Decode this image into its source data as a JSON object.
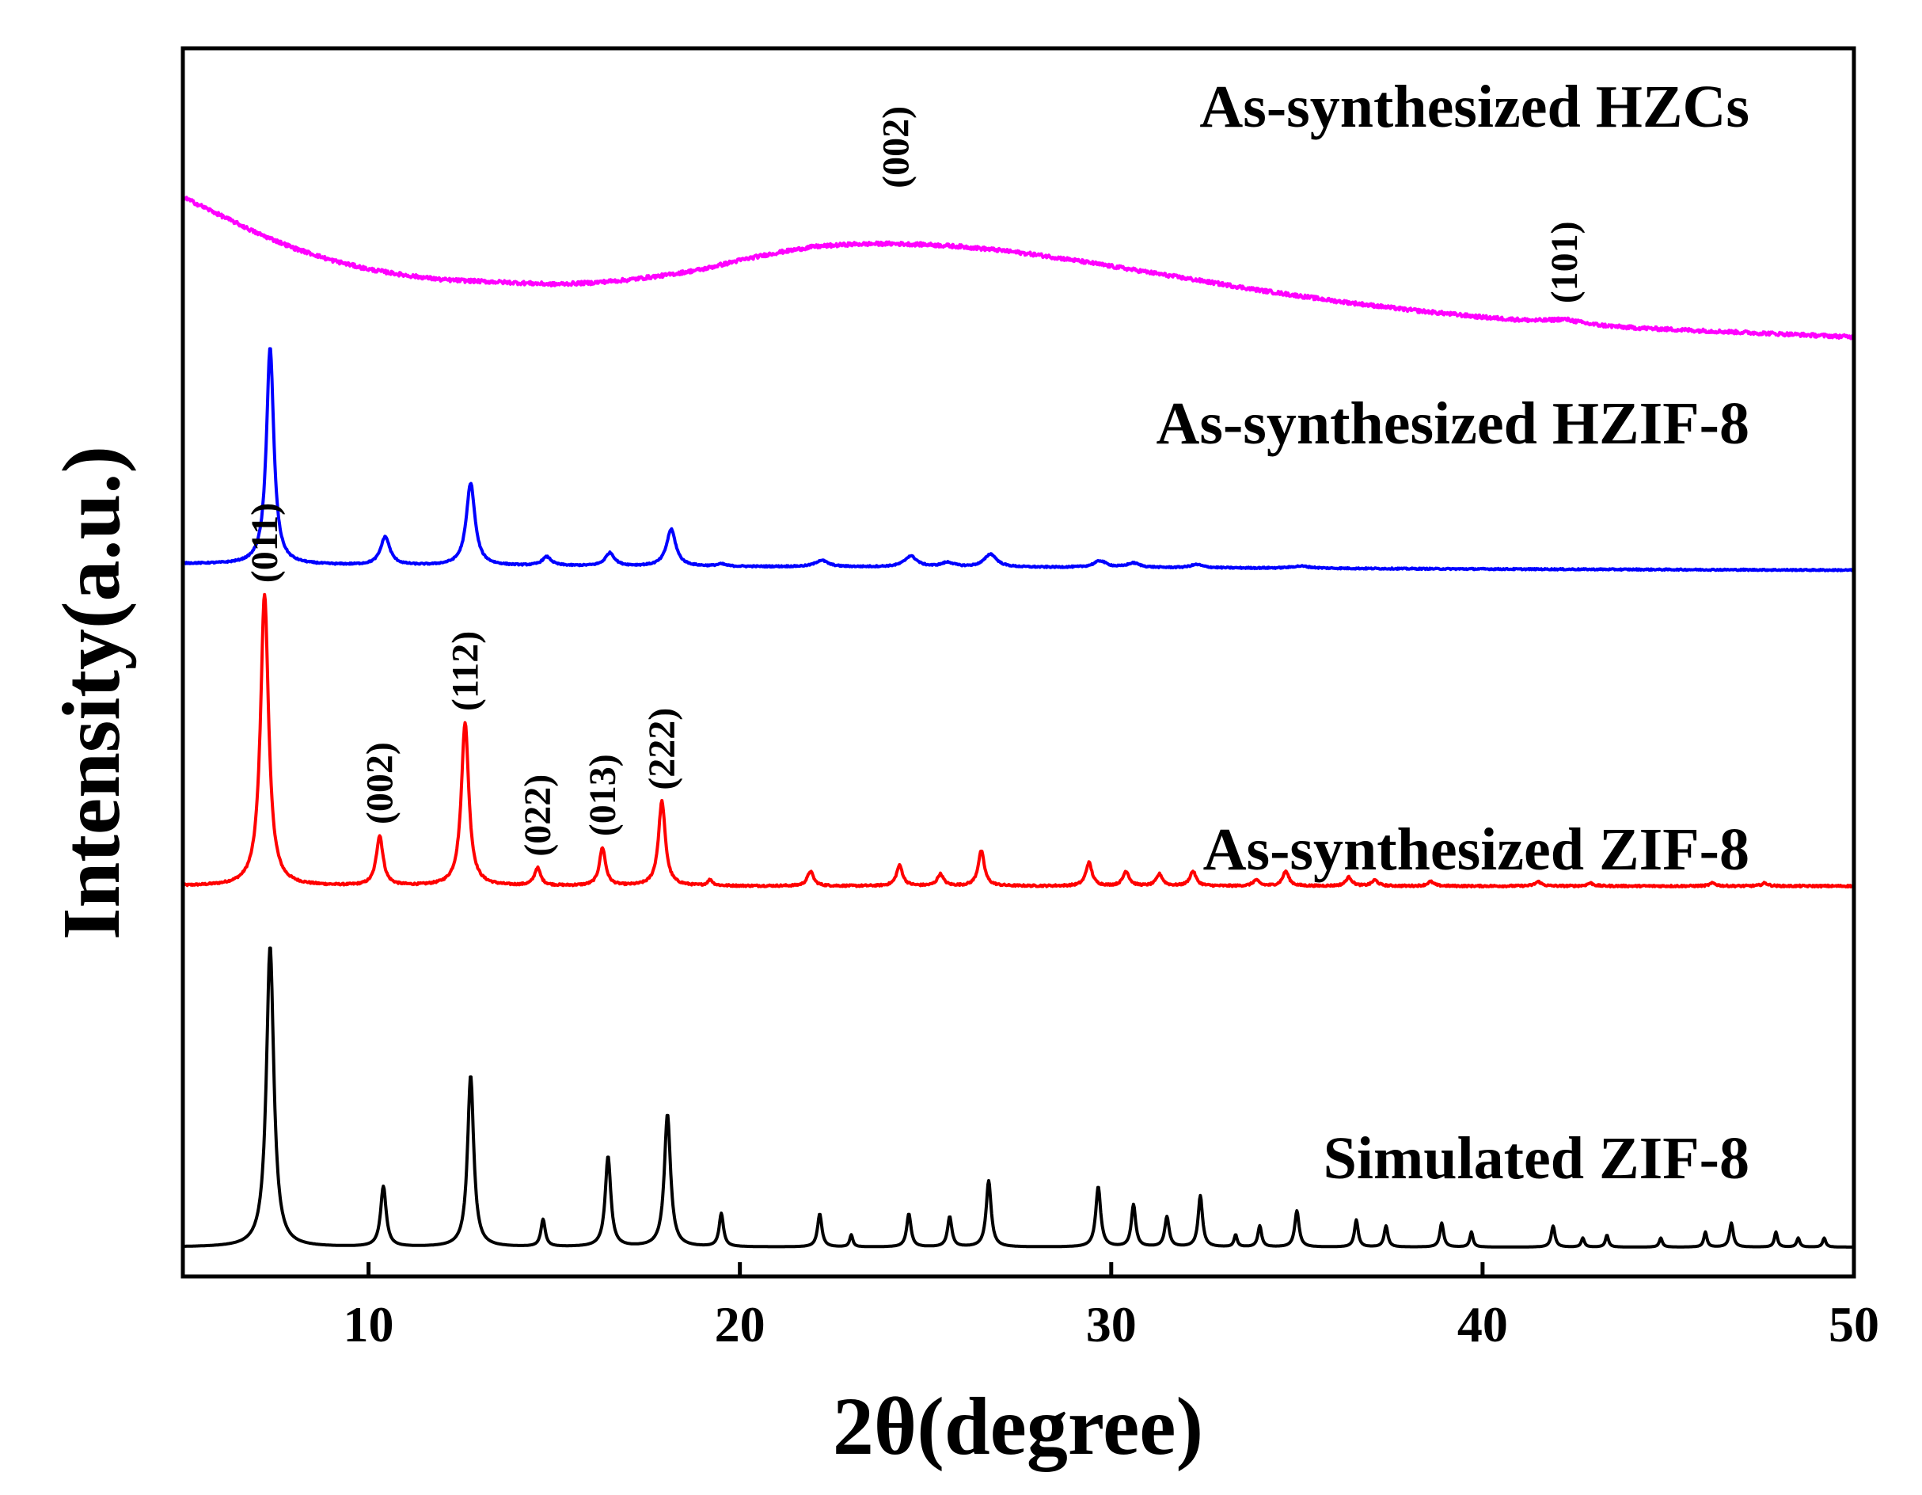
{
  "chart_data": {
    "type": "line",
    "title": "",
    "xlabel": "2θ(degree)",
    "ylabel": "Intensity(a.u.)",
    "xlim": [
      5,
      50
    ],
    "xticks": [
      10,
      20,
      30,
      40,
      50
    ],
    "xtick_labels": [
      "10",
      "20",
      "30",
      "40",
      "50"
    ],
    "yticks": [],
    "grid": false,
    "series": [
      {
        "name": "Simulated ZIF-8",
        "color": "#000000",
        "offset": 0,
        "scale": 1.0,
        "background": [
          [
            5,
            0
          ],
          [
            50,
            0
          ]
        ],
        "peaks": [
          [
            7.35,
            100,
            0.12
          ],
          [
            10.4,
            20,
            0.09
          ],
          [
            12.75,
            57,
            0.1
          ],
          [
            14.7,
            9,
            0.07
          ],
          [
            16.45,
            30,
            0.09
          ],
          [
            18.05,
            44,
            0.1
          ],
          [
            19.5,
            11,
            0.07
          ],
          [
            22.15,
            11,
            0.07
          ],
          [
            23.0,
            4,
            0.05
          ],
          [
            24.55,
            11,
            0.07
          ],
          [
            25.65,
            10,
            0.07
          ],
          [
            26.7,
            22,
            0.08
          ],
          [
            29.65,
            20,
            0.08
          ],
          [
            30.6,
            14,
            0.07
          ],
          [
            31.5,
            10,
            0.07
          ],
          [
            32.4,
            17,
            0.07
          ],
          [
            33.35,
            4,
            0.05
          ],
          [
            34.0,
            7,
            0.06
          ],
          [
            35.0,
            12,
            0.07
          ],
          [
            36.6,
            9,
            0.06
          ],
          [
            37.4,
            7,
            0.06
          ],
          [
            38.9,
            8,
            0.06
          ],
          [
            39.7,
            5,
            0.05
          ],
          [
            41.9,
            7,
            0.06
          ],
          [
            42.7,
            3,
            0.05
          ],
          [
            43.35,
            4,
            0.05
          ],
          [
            44.8,
            3,
            0.05
          ],
          [
            46.0,
            5,
            0.05
          ],
          [
            46.7,
            8,
            0.06
          ],
          [
            47.9,
            5,
            0.05
          ],
          [
            48.5,
            3,
            0.05
          ],
          [
            49.2,
            3,
            0.05
          ]
        ]
      },
      {
        "name": "As-synthesized ZIF-8",
        "color": "#ff0000",
        "offset": 120,
        "scale": 0.97,
        "noise": 0.6,
        "background": [
          [
            5,
            0
          ],
          [
            50,
            0
          ]
        ],
        "peaks": [
          [
            7.2,
            100,
            0.13
          ],
          [
            10.3,
            17,
            0.11
          ],
          [
            12.6,
            56,
            0.12
          ],
          [
            14.55,
            6,
            0.1
          ],
          [
            16.3,
            13,
            0.1
          ],
          [
            17.9,
            29,
            0.11
          ],
          [
            19.2,
            2,
            0.08
          ],
          [
            21.9,
            5,
            0.1
          ],
          [
            24.3,
            7,
            0.1
          ],
          [
            25.4,
            4,
            0.1
          ],
          [
            26.5,
            12,
            0.1
          ],
          [
            29.4,
            8,
            0.1
          ],
          [
            30.4,
            5,
            0.1
          ],
          [
            31.3,
            4,
            0.1
          ],
          [
            32.2,
            5,
            0.1
          ],
          [
            33.9,
            2,
            0.1
          ],
          [
            34.7,
            5,
            0.1
          ],
          [
            36.4,
            3,
            0.1
          ],
          [
            37.1,
            2,
            0.1
          ],
          [
            38.6,
            1.5,
            0.1
          ],
          [
            41.5,
            1.5,
            0.1
          ],
          [
            42.9,
            1,
            0.1
          ],
          [
            46.2,
            1,
            0.1
          ],
          [
            47.6,
            1,
            0.1
          ]
        ]
      },
      {
        "name": "As-synthesized HZIF-8",
        "color": "#0000ff",
        "offset": 225,
        "scale": 0.72,
        "noise": 0.6,
        "background": [
          [
            5,
            3
          ],
          [
            10,
            2.2
          ],
          [
            20,
            1.6
          ],
          [
            30,
            1.2
          ],
          [
            40,
            0.5
          ],
          [
            50,
            0
          ]
        ],
        "peaks": [
          [
            7.35,
            100,
            0.12
          ],
          [
            10.45,
            13,
            0.15
          ],
          [
            12.75,
            38,
            0.14
          ],
          [
            14.8,
            4,
            0.15
          ],
          [
            16.5,
            6,
            0.15
          ],
          [
            18.15,
            17,
            0.15
          ],
          [
            19.5,
            1,
            0.15
          ],
          [
            22.2,
            3,
            0.2
          ],
          [
            24.6,
            5,
            0.2
          ],
          [
            25.6,
            2,
            0.2
          ],
          [
            26.75,
            6,
            0.2
          ],
          [
            29.7,
            3,
            0.2
          ],
          [
            30.6,
            2,
            0.2
          ],
          [
            32.3,
            1.5,
            0.2
          ],
          [
            35.1,
            1,
            0.3
          ]
        ]
      },
      {
        "name": "As-synthesized HZCs",
        "color": "#ff00ff",
        "offset": 295,
        "scale": 1.0,
        "noise": 1.2,
        "background": [
          [
            5,
            54
          ],
          [
            6,
            48
          ],
          [
            7,
            42
          ],
          [
            8,
            37
          ],
          [
            9,
            33
          ],
          [
            10,
            30
          ],
          [
            11,
            28
          ],
          [
            12,
            26.5
          ],
          [
            13,
            26
          ],
          [
            14,
            25.5
          ],
          [
            15,
            25
          ],
          [
            16,
            25.5
          ],
          [
            17,
            26.5
          ],
          [
            18,
            28
          ],
          [
            19,
            30
          ],
          [
            20,
            33
          ],
          [
            21,
            35.5
          ],
          [
            22,
            37.5
          ],
          [
            23,
            38.3
          ],
          [
            24,
            38.5
          ],
          [
            25,
            38.2
          ],
          [
            26,
            37.5
          ],
          [
            27,
            36.3
          ],
          [
            28,
            34.8
          ],
          [
            29,
            33
          ],
          [
            30,
            31
          ],
          [
            32,
            27
          ],
          [
            34,
            23
          ],
          [
            36,
            19.5
          ],
          [
            38,
            16.5
          ],
          [
            40,
            14
          ],
          [
            42,
            12
          ],
          [
            44,
            10.5
          ],
          [
            46,
            9.5
          ],
          [
            48,
            8.5
          ],
          [
            50,
            7.5
          ]
        ],
        "peaks": [
          [
            42.2,
            1.5,
            0.5
          ]
        ]
      }
    ],
    "series_labels": [
      {
        "series": "As-synthesized HZCs",
        "text": "As-synthesized HZCs"
      },
      {
        "series": "As-synthesized HZIF-8",
        "text": "As-synthesized HZIF-8"
      },
      {
        "series": "As-synthesized ZIF-8",
        "text": "As-synthesized ZIF-8"
      },
      {
        "series": "Simulated ZIF-8",
        "text": "Simulated ZIF-8"
      }
    ],
    "peak_annotations": [
      {
        "series": "As-synthesized ZIF-8",
        "x": 7.2,
        "text": "(011)"
      },
      {
        "series": "As-synthesized ZIF-8",
        "x": 10.3,
        "text": "(002)"
      },
      {
        "series": "As-synthesized ZIF-8",
        "x": 12.6,
        "text": "(112)"
      },
      {
        "series": "As-synthesized ZIF-8",
        "x": 14.55,
        "text": "(022)"
      },
      {
        "series": "As-synthesized ZIF-8",
        "x": 16.3,
        "text": "(013)"
      },
      {
        "series": "As-synthesized ZIF-8",
        "x": 17.9,
        "text": "(222)"
      },
      {
        "series": "As-synthesized HZCs",
        "x": 24.2,
        "text": "(002)"
      },
      {
        "series": "As-synthesized HZCs",
        "x": 42.2,
        "text": "(101)"
      }
    ]
  }
}
